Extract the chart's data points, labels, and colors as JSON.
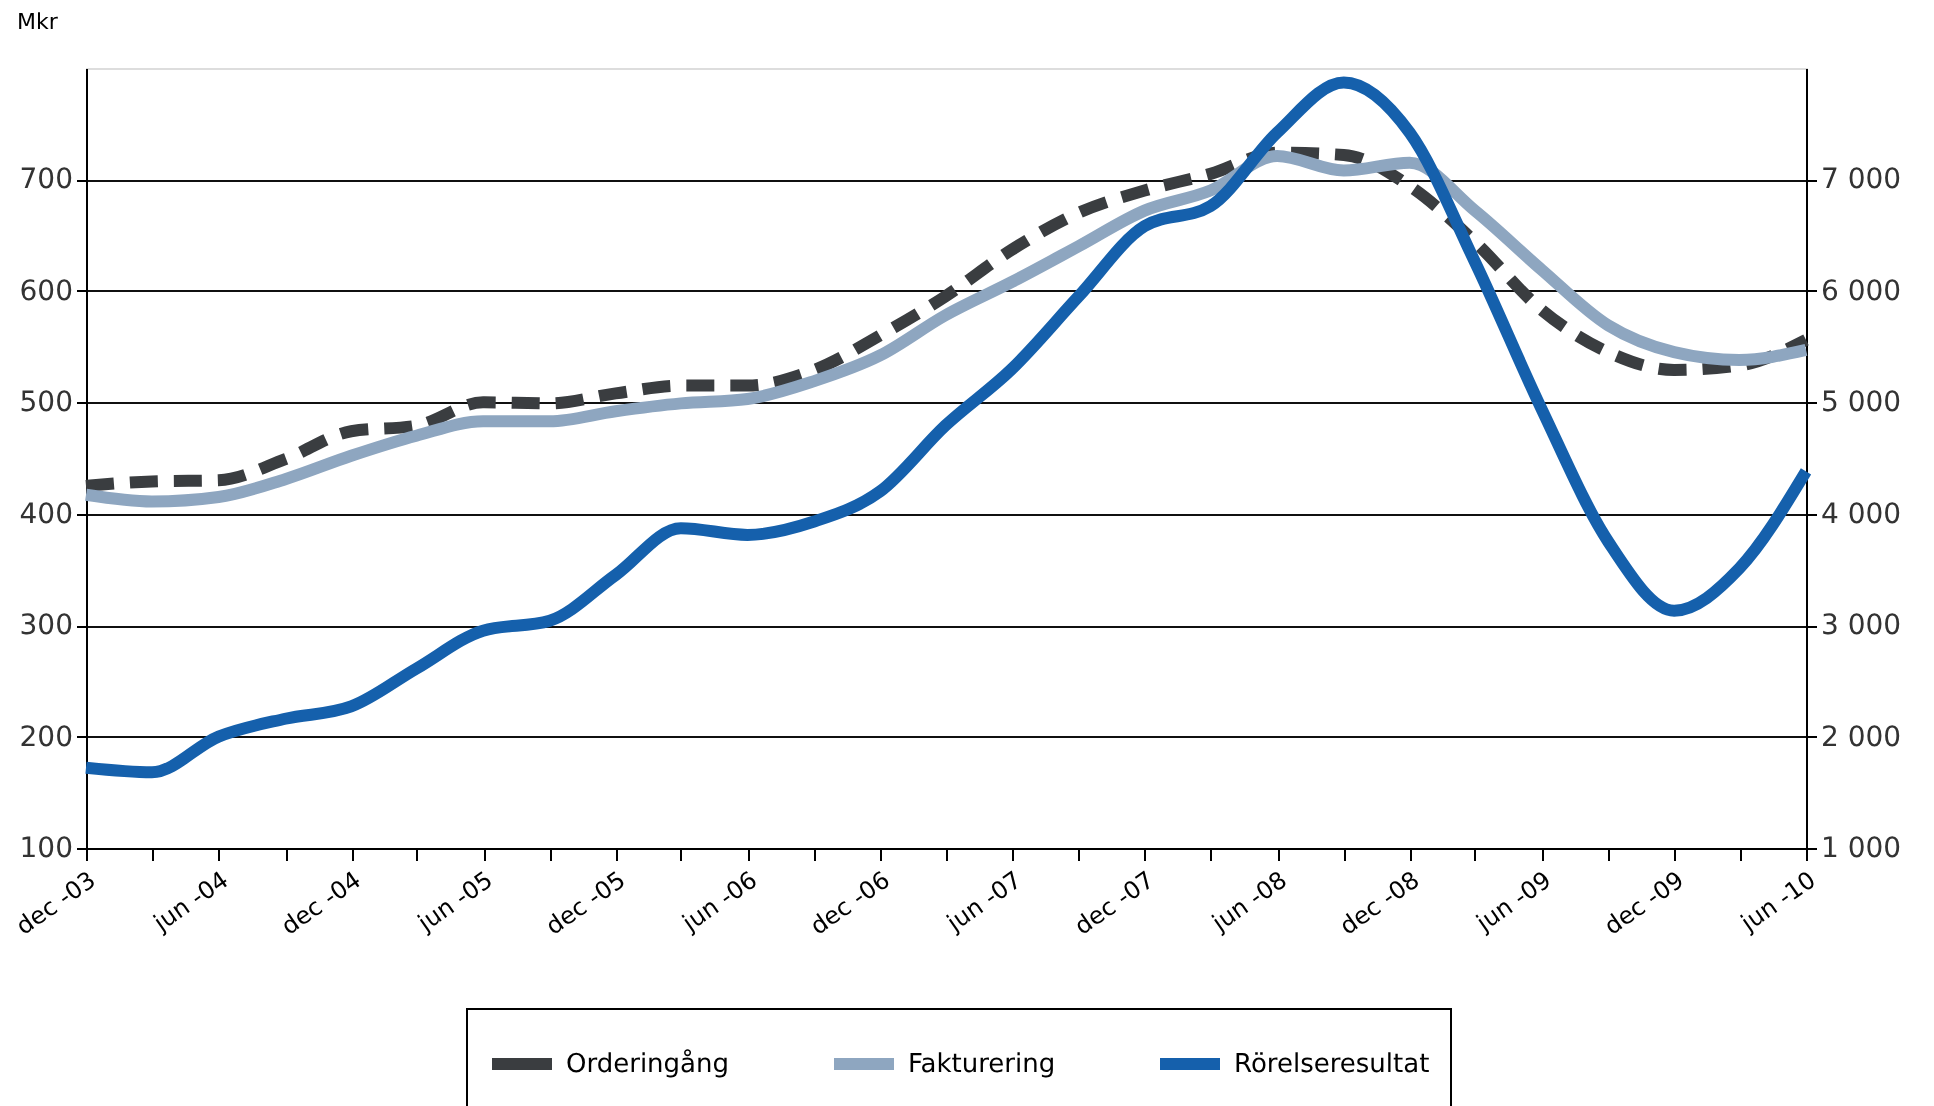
{
  "chart_data": {
    "type": "line",
    "ylabel": "Mkr",
    "x": [
      "2003-12",
      "2004-03",
      "2004-06",
      "2004-09",
      "2004-12",
      "2005-03",
      "2005-06",
      "2005-09",
      "2005-12",
      "2006-03",
      "2006-06",
      "2006-09",
      "2006-12",
      "2007-03",
      "2007-06",
      "2007-09",
      "2007-12",
      "2008-03",
      "2008-06",
      "2008-09",
      "2008-12",
      "2009-03",
      "2009-06",
      "2009-09",
      "2009-12",
      "2010-03",
      "2010-06"
    ],
    "series": [
      {
        "name": "Orderingång",
        "color": "#3a3d40",
        "axis": "y2",
        "line_style": "dashed",
        "values": [
          4250,
          4290,
          4300,
          4490,
          4740,
          4790,
          5000,
          4990,
          5080,
          5150,
          5150,
          5290,
          5600,
          5950,
          6370,
          6700,
          6900,
          7050,
          7240,
          7220,
          6940,
          6440,
          5830,
          5450,
          5290,
          5330,
          5560
        ]
      },
      {
        "name": "Fakturering",
        "color": "#8ea6c0",
        "axis": "y2",
        "line_style": "solid",
        "values": [
          4170,
          4110,
          4150,
          4310,
          4520,
          4700,
          4830,
          4830,
          4920,
          4990,
          5030,
          5190,
          5420,
          5780,
          6080,
          6400,
          6720,
          6900,
          7210,
          7080,
          7150,
          6720,
          6190,
          5690,
          5450,
          5380,
          5470
        ]
      },
      {
        "name": "Rörelseresultat",
        "color": "#1560ac",
        "line_style": "solid",
        "values": [
          172,
          168,
          200,
          216,
          227,
          261,
          295,
          304,
          345,
          387,
          381,
          393,
          420,
          479,
          530,
          595,
          658,
          676,
          742,
          787,
          742,
          626,
          494,
          375,
          313,
          351,
          438
        ]
      }
    ],
    "xlim": [
      "2003-12",
      "2010-06"
    ],
    "xticks": [
      {
        "value": "2003-12",
        "label": "dec -03"
      },
      {
        "value": "2004-03",
        "label": null
      },
      {
        "value": "2004-06",
        "label": "jun -04"
      },
      {
        "value": "2004-09",
        "label": null
      },
      {
        "value": "2004-12",
        "label": "dec -04"
      },
      {
        "value": "2005-03",
        "label": null
      },
      {
        "value": "2005-06",
        "label": "jun -05"
      },
      {
        "value": "2005-09",
        "label": null
      },
      {
        "value": "2005-12",
        "label": "dec -05"
      },
      {
        "value": "2006-03",
        "label": null
      },
      {
        "value": "2006-06",
        "label": "jun -06"
      },
      {
        "value": "2006-09",
        "label": null
      },
      {
        "value": "2006-12",
        "label": "dec -06"
      },
      {
        "value": "2007-03",
        "label": null
      },
      {
        "value": "2007-06",
        "label": "jun -07"
      },
      {
        "value": "2007-09",
        "label": null
      },
      {
        "value": "2007-12",
        "label": "dec -07"
      },
      {
        "value": "2008-03",
        "label": null
      },
      {
        "value": "2008-06",
        "label": "jun -08"
      },
      {
        "value": "2008-09",
        "label": null
      },
      {
        "value": "2008-12",
        "label": "dec -08"
      },
      {
        "value": "2009-03",
        "label": null
      },
      {
        "value": "2009-06",
        "label": "jun -09"
      },
      {
        "value": "2009-09",
        "label": null
      },
      {
        "value": "2009-12",
        "label": "dec -09"
      },
      {
        "value": "2010-03",
        "label": null
      },
      {
        "value": "2010-06",
        "label": "jun -10"
      }
    ],
    "ylim": [
      100,
      800
    ],
    "yticks": [
      100,
      200,
      300,
      400,
      500,
      600,
      700
    ],
    "y2lim": [
      1000,
      8000
    ],
    "y2ticks": [
      {
        "value": 1000,
        "label": "1 000"
      },
      {
        "value": 2000,
        "label": "2 000"
      },
      {
        "value": 3000,
        "label": "3 000"
      },
      {
        "value": 4000,
        "label": "4 000"
      },
      {
        "value": 5000,
        "label": "5 000"
      },
      {
        "value": 6000,
        "label": "6 000"
      },
      {
        "value": 7000,
        "label": "7 000"
      }
    ],
    "grid": "y",
    "legend": "bottom"
  }
}
